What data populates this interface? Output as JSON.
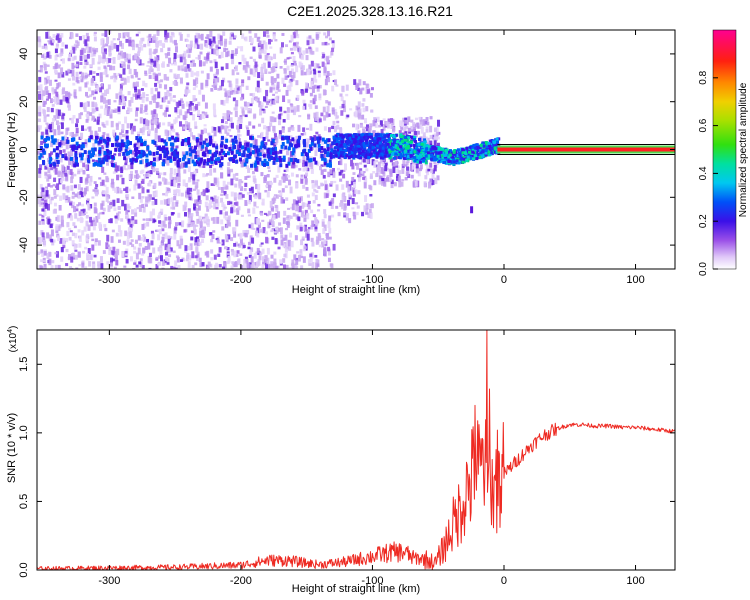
{
  "figure_title": "C2E1.2025.328.13.16.R21",
  "chart_data": [
    {
      "type": "heatmap",
      "name": "spectrogram",
      "xlabel": "Height of straight line (km)",
      "ylabel": "Frequency (Hz)",
      "xlim": [
        -355,
        130
      ],
      "ylim": [
        -50,
        50
      ],
      "xticks": [
        -300,
        -200,
        -100,
        0,
        100
      ],
      "xtick_labels": [
        "-300",
        "-200",
        "-100",
        "0",
        "100"
      ],
      "yticks": [
        -40,
        -20,
        0,
        20,
        40
      ],
      "ytick_labels": [
        "-40",
        "-20",
        "0",
        "20",
        "40"
      ],
      "colorbar": {
        "label": "Normalized spectral amplitude",
        "range": [
          0,
          1
        ],
        "ticks": [
          0.0,
          0.2,
          0.4,
          0.6,
          0.8
        ],
        "tick_labels": [
          "0.0",
          "0.2",
          "0.4",
          "0.6",
          "0.8"
        ],
        "colormap": [
          "#ffffff",
          "#c8a8f0",
          "#7a2be0",
          "#1f1ff0",
          "#00c8f0",
          "#00e080",
          "#40e000",
          "#d8e000",
          "#ff8800",
          "#ff1010",
          "#ff00a0"
        ]
      },
      "features": {
        "noise_region_km": [
          -355,
          -60
        ],
        "carrier_region_km": [
          -5,
          130
        ],
        "carrier_frequency_hz": 0,
        "carrier_colors": [
          "#ff2020",
          "#20d020"
        ],
        "signal_band_peak_km": -80,
        "isolated_blob": {
          "x_km": -25,
          "y_hz": -25
        }
      }
    },
    {
      "type": "line",
      "name": "snr",
      "xlabel": "Height of straight line (km)",
      "ylabel": "SNR (10 * v/v)",
      "y_multiplier": "(x10",
      "y_multiplier_exponent": "4",
      "y_multiplier_close": ")",
      "xlim": [
        -355,
        130
      ],
      "ylim": [
        0,
        1.75
      ],
      "xticks": [
        -300,
        -200,
        -100,
        0,
        100
      ],
      "xtick_labels": [
        "-300",
        "-200",
        "-100",
        "0",
        "100"
      ],
      "yticks": [
        0.0,
        0.5,
        1.0,
        1.5
      ],
      "ytick_labels": [
        "0.0",
        "0.5",
        "1.0",
        "1.5"
      ],
      "line_color": "#ee2a22",
      "series": [
        {
          "name": "SNR",
          "x": [
            -355,
            -300,
            -250,
            -200,
            -180,
            -165,
            -150,
            -140,
            -120,
            -100,
            -85,
            -75,
            -70,
            -60,
            -52,
            -45,
            -40,
            -35,
            -30,
            -25,
            -22,
            -18,
            -15,
            -13,
            -10,
            -5,
            0,
            10,
            20,
            30,
            40,
            50,
            60,
            70,
            80,
            90,
            100,
            110,
            120,
            130
          ],
          "y": [
            0.01,
            0.015,
            0.02,
            0.035,
            0.07,
            0.07,
            0.05,
            0.04,
            0.06,
            0.1,
            0.13,
            0.13,
            0.09,
            0.08,
            0.05,
            0.18,
            0.3,
            0.4,
            0.55,
            0.65,
            0.75,
            0.7,
            0.8,
            0.6,
            0.58,
            0.62,
            0.7,
            0.8,
            0.9,
            0.98,
            1.03,
            1.06,
            1.06,
            1.05,
            1.05,
            1.04,
            1.04,
            1.03,
            1.02,
            1.01
          ],
          "spikes": [
            {
              "x": -22,
              "y": 1.2
            },
            {
              "x": -19,
              "y": 1.06
            },
            {
              "x": -13,
              "y": 1.75
            },
            {
              "x": -11,
              "y": 1.32
            },
            {
              "x": -16,
              "y": 0.95
            },
            {
              "x": -5,
              "y": 1.02
            }
          ]
        }
      ]
    }
  ]
}
